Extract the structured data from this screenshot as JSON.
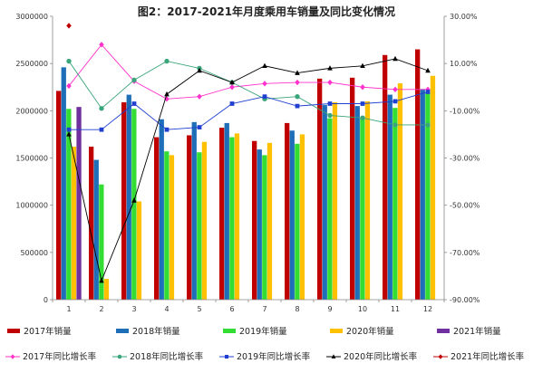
{
  "chart_data": {
    "type": "bar",
    "title": "图2：2017-2021年月度乘用车销量及同比变化情况",
    "categories": [
      "1",
      "2",
      "3",
      "4",
      "5",
      "6",
      "7",
      "8",
      "9",
      "10",
      "11",
      "12"
    ],
    "y_left": {
      "ylim": [
        0,
        3000000
      ],
      "ticks": [
        0,
        500000,
        1000000,
        1500000,
        2000000,
        2500000,
        3000000
      ],
      "tick_labels": [
        "0",
        "500000",
        "1000000",
        "1500000",
        "2000000",
        "2500000",
        "3000000"
      ]
    },
    "y_right": {
      "ylim": [
        -90,
        30
      ],
      "ticks": [
        30,
        10,
        -10,
        -30,
        -50,
        -70,
        -90
      ],
      "tick_labels": [
        "30.00%",
        "10.00%",
        "-10.00%",
        "-30.00%",
        "-50.00%",
        "-70.00%",
        "-90.00%"
      ]
    },
    "bar_series": [
      {
        "name": "2017年销量",
        "color": "#c00000",
        "values": [
          2210000,
          1620000,
          2090000,
          1720000,
          1740000,
          1820000,
          1680000,
          1870000,
          2340000,
          2350000,
          2590000,
          2650000
        ]
      },
      {
        "name": "2018年销量",
        "color": "#1f6fb8",
        "values": [
          2460000,
          1480000,
          2170000,
          1910000,
          1880000,
          1870000,
          1590000,
          1790000,
          2060000,
          2050000,
          2170000,
          2230000
        ]
      },
      {
        "name": "2019年销量",
        "color": "#33dd33",
        "values": [
          2020000,
          1220000,
          2020000,
          1570000,
          1560000,
          1720000,
          1530000,
          1650000,
          1920000,
          1920000,
          2030000,
          2200000
        ]
      },
      {
        "name": "2020年销量",
        "color": "#ffc000",
        "values": [
          1620000,
          220000,
          1040000,
          1530000,
          1670000,
          1760000,
          1660000,
          1750000,
          2090000,
          2100000,
          2290000,
          2370000
        ]
      },
      {
        "name": "2021年销量",
        "color": "#7030a0",
        "values": [
          2040000,
          null,
          null,
          null,
          null,
          null,
          null,
          null,
          null,
          null,
          null,
          null
        ]
      }
    ],
    "line_series": [
      {
        "name": "2017年同比增长率",
        "color": "#ff33cc",
        "marker": "diamond",
        "values": [
          0.5,
          18,
          2.5,
          -5,
          -4,
          0,
          1.5,
          2,
          2,
          0,
          -1,
          -1
        ]
      },
      {
        "name": "2018年同比增长率",
        "color": "#3aa57a",
        "marker": "circle",
        "values": [
          11,
          -9,
          3,
          11,
          8,
          2,
          -5,
          -4,
          -12,
          -13,
          -16,
          -16
        ]
      },
      {
        "name": "2019年同比增长率",
        "color": "#1f3fd0",
        "marker": "square",
        "values": [
          -18,
          -18,
          -7,
          -18,
          -17,
          -7,
          -4,
          -8,
          -7,
          -7,
          -6,
          -2
        ]
      },
      {
        "name": "2020年同比增长率",
        "color": "#000000",
        "marker": "triangle",
        "values": [
          -20,
          -82,
          -48,
          -3,
          7,
          2,
          9,
          6,
          8,
          9,
          12,
          7
        ]
      },
      {
        "name": "2021年同比增长率",
        "color": "#c00000",
        "marker": "diamond",
        "values": [
          26,
          null,
          null,
          null,
          null,
          null,
          null,
          null,
          null,
          null,
          null,
          null
        ]
      }
    ],
    "legend_position": "bottom",
    "grid": false
  }
}
